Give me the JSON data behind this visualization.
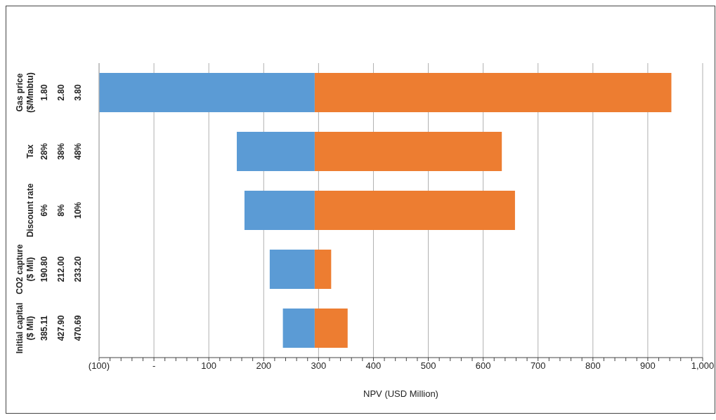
{
  "chart_data": {
    "type": "bar",
    "orientation": "horizontal",
    "categories": [
      "Gas price\n($/Mmbtu)\n1.80\n2.80\n3.80",
      "Tax\n28%\n38%\n48%",
      "Discount rate\n6%\n8%\n10%",
      "CO2 capture\n($ Mil)\n190.80\n212.00\n233.20",
      "Initial capital\n($ Mil)\n385.11\n427.90\n470.69"
    ],
    "series": [
      {
        "color": "#5b9bd5",
        "base": [
          -100,
          151,
          165,
          211,
          235
        ],
        "values": [
          393,
          142,
          128,
          82,
          58
        ]
      },
      {
        "color": "#ed7d31",
        "base": [
          293,
          293,
          293,
          293,
          293
        ],
        "values": [
          650,
          341,
          365,
          30,
          60
        ]
      }
    ],
    "xlabel": "NPV (USD Million)",
    "xlim": [
      -100,
      1000
    ],
    "xticks": [
      {
        "value": -100,
        "label": "(100)"
      },
      {
        "value": -80,
        "label": null
      },
      {
        "value": -60,
        "label": null
      },
      {
        "value": -40,
        "label": null
      },
      {
        "value": -20,
        "label": null
      },
      {
        "value": 0,
        "label": "-"
      },
      {
        "value": 20,
        "label": null
      },
      {
        "value": 40,
        "label": null
      },
      {
        "value": 60,
        "label": null
      },
      {
        "value": 80,
        "label": null
      },
      100,
      {
        "value": 120,
        "label": null
      },
      {
        "value": 140,
        "label": null
      },
      {
        "value": 160,
        "label": null
      },
      {
        "value": 180,
        "label": null
      },
      200,
      {
        "value": 220,
        "label": null
      },
      {
        "value": 240,
        "label": null
      },
      {
        "value": 260,
        "label": null
      },
      {
        "value": 280,
        "label": null
      },
      300,
      {
        "value": 320,
        "label": null
      },
      {
        "value": 340,
        "label": null
      },
      {
        "value": 360,
        "label": null
      },
      {
        "value": 380,
        "label": null
      },
      400,
      {
        "value": 420,
        "label": null
      },
      {
        "value": 440,
        "label": null
      },
      {
        "value": 460,
        "label": null
      },
      {
        "value": 480,
        "label": null
      },
      500,
      {
        "value": 520,
        "label": null
      },
      {
        "value": 540,
        "label": null
      },
      {
        "value": 560,
        "label": null
      },
      {
        "value": 580,
        "label": null
      },
      600,
      {
        "value": 620,
        "label": null
      },
      {
        "value": 640,
        "label": null
      },
      {
        "value": 660,
        "label": null
      },
      {
        "value": 680,
        "label": null
      },
      700,
      {
        "value": 720,
        "label": null
      },
      {
        "value": 740,
        "label": null
      },
      {
        "value": 760,
        "label": null
      },
      {
        "value": 780,
        "label": null
      },
      800,
      {
        "value": 820,
        "label": null
      },
      {
        "value": 840,
        "label": null
      },
      {
        "value": 860,
        "label": null
      },
      {
        "value": 880,
        "label": null
      },
      900,
      {
        "value": 920,
        "label": null
      },
      {
        "value": 940,
        "label": null
      },
      {
        "value": 960,
        "label": null
      },
      {
        "value": 980,
        "label": null
      },
      {
        "value": 1000,
        "label": "1,000"
      }
    ],
    "grid": "x"
  }
}
